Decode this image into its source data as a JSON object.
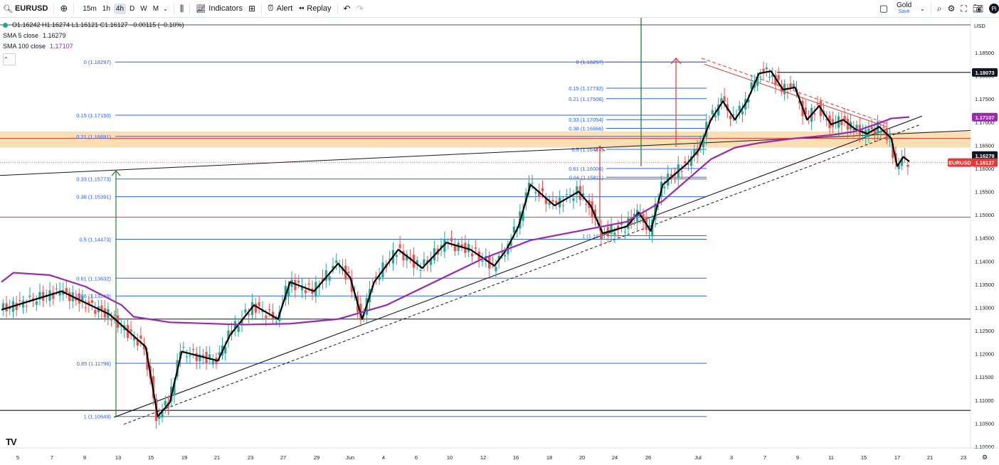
{
  "toolbar": {
    "symbol": "EURUSD",
    "add_symbol_icon": "plus-circle-icon",
    "timeframes": [
      "15m",
      "1h",
      "4h",
      "D",
      "W",
      "M"
    ],
    "active_timeframe": "4h",
    "indicators_label": "Indicators",
    "alert_label": "Alert",
    "replay_label": "Replay",
    "layout_name": "Gold",
    "save_label": "Save",
    "avatar_initial": "Pi"
  },
  "legend": {
    "ohlc": "O1.16242 H1.16274 L1.16121 C1.16127 −0.00115 (−0.10%)",
    "sma5_label": "SMA 5 close",
    "sma5_value": "1.16279",
    "sma100_label": "SMA 100 close",
    "sma100_value": "1.17107"
  },
  "colors": {
    "up": "#26a69a",
    "down": "#ef5350",
    "sma5": "#000000",
    "sma100": "#9c27b0",
    "fib": "#2962ff",
    "zone": "#f9d9a6",
    "red_line": "#e53935",
    "green_line": "#2e7d32"
  },
  "chart_data": {
    "type": "candlestick",
    "symbol": "EURUSD",
    "timeframe": "4h",
    "currency": "USD",
    "ylim": [
      1.095,
      1.189
    ],
    "y_ticks": [
      1.185,
      1.18,
      1.175,
      1.17,
      1.165,
      1.16,
      1.155,
      1.15,
      1.145,
      1.14,
      1.135,
      1.13,
      1.125,
      1.12,
      1.115,
      1.11,
      1.105,
      1.1
    ],
    "x_ticks": [
      "5",
      "7",
      "9",
      "13",
      "15",
      "19",
      "21",
      "23",
      "27",
      "29",
      "Jun",
      "4",
      "6",
      "10",
      "12",
      "16",
      "18",
      "20",
      "24",
      "26",
      "Jul",
      "3",
      "7",
      "9",
      "11",
      "15",
      "17",
      "21",
      "23"
    ],
    "close_path": [
      [
        0,
        1.1295
      ],
      [
        5,
        1.1335
      ],
      [
        9,
        1.1285
      ],
      [
        12,
        1.1215
      ],
      [
        13,
        1.1065
      ],
      [
        14,
        1.1095
      ],
      [
        15,
        1.1205
      ],
      [
        18,
        1.1185
      ],
      [
        19,
        1.124
      ],
      [
        21,
        1.1305
      ],
      [
        23,
        1.1275
      ],
      [
        24,
        1.1355
      ],
      [
        26,
        1.1335
      ],
      [
        28,
        1.1395
      ],
      [
        29,
        1.1365
      ],
      [
        30,
        1.1275
      ],
      [
        31,
        1.1355
      ],
      [
        33,
        1.1425
      ],
      [
        35,
        1.1385
      ],
      [
        37,
        1.144
      ],
      [
        39,
        1.1425
      ],
      [
        41,
        1.139
      ],
      [
        42,
        1.1425
      ],
      [
        43,
        1.1475
      ],
      [
        44,
        1.1565
      ],
      [
        46,
        1.152
      ],
      [
        48,
        1.155
      ],
      [
        49,
        1.152
      ],
      [
        50,
        1.146
      ],
      [
        52,
        1.1475
      ],
      [
        53,
        1.1505
      ],
      [
        54,
        1.1465
      ],
      [
        55,
        1.1565
      ],
      [
        57,
        1.161
      ],
      [
        58,
        1.164
      ],
      [
        59,
        1.1705
      ],
      [
        60,
        1.1745
      ],
      [
        61,
        1.1705
      ],
      [
        62,
        1.1745
      ],
      [
        63,
        1.1805
      ],
      [
        64,
        1.181
      ],
      [
        65,
        1.177
      ],
      [
        66,
        1.1775
      ],
      [
        67,
        1.1705
      ],
      [
        68,
        1.1735
      ],
      [
        69,
        1.1695
      ],
      [
        70,
        1.1705
      ],
      [
        71,
        1.1685
      ],
      [
        72,
        1.1675
      ],
      [
        73,
        1.169
      ],
      [
        74,
        1.1665
      ],
      [
        74.5,
        1.1605
      ],
      [
        75,
        1.1625
      ],
      [
        75.5,
        1.1615
      ]
    ],
    "ma100_path": [
      [
        0,
        1.1355
      ],
      [
        1,
        1.1375
      ],
      [
        4,
        1.137
      ],
      [
        7,
        1.1345
      ],
      [
        10,
        1.1305
      ],
      [
        11,
        1.128
      ],
      [
        14,
        1.1268
      ],
      [
        20,
        1.1263
      ],
      [
        24,
        1.1265
      ],
      [
        28,
        1.1275
      ],
      [
        32,
        1.1305
      ],
      [
        36,
        1.1355
      ],
      [
        40,
        1.1405
      ],
      [
        44,
        1.1445
      ],
      [
        48,
        1.1465
      ],
      [
        50,
        1.1475
      ],
      [
        52,
        1.1485
      ],
      [
        55,
        1.153
      ],
      [
        57,
        1.1575
      ],
      [
        59,
        1.162
      ],
      [
        61,
        1.1645
      ],
      [
        63,
        1.1655
      ],
      [
        66,
        1.1665
      ],
      [
        69,
        1.1672
      ],
      [
        71,
        1.168
      ],
      [
        73,
        1.1698
      ],
      [
        74,
        1.1708
      ],
      [
        75.5,
        1.1711
      ]
    ],
    "fib_left": {
      "from_x": 10,
      "to_x": 62,
      "levels": [
        {
          "label": "0 (1.18297)",
          "price": 1.18297
        },
        {
          "label": "0.15 (1.17150)",
          "price": 1.1715
        },
        {
          "label": "0.21 (1.16691)",
          "price": 1.16691
        },
        {
          "label": "0.33 (1.15773)",
          "price": 1.15773
        },
        {
          "label": "0.38 (1.15391)",
          "price": 1.15391
        },
        {
          "label": "0.5 (1.14473)",
          "price": 1.14473
        },
        {
          "label": "0.61 (1.13632)",
          "price": 1.13632
        },
        {
          "label": "0.66 (1.13249)",
          "price": 1.13249
        },
        {
          "label": "0.85 (1.11796)",
          "price": 1.11796
        },
        {
          "label": "1 (1.10649)",
          "price": 1.10649
        }
      ]
    },
    "fib_right": {
      "from_x": 53,
      "to_x": 62,
      "levels": [
        {
          "label": "0 (1.18297)",
          "price": 1.18297
        },
        {
          "label": "0.15 (1.17732)",
          "price": 1.17732
        },
        {
          "label": "0.21 (1.17506)",
          "price": 1.17506
        },
        {
          "label": "0.33 (1.17054)",
          "price": 1.17054
        },
        {
          "label": "0.38 (1.16866)",
          "price": 1.16866
        },
        {
          "label": "0.5 (1.16414)",
          "price": 1.16414
        },
        {
          "label": "0.61 (1.16000)",
          "price": 1.16
        },
        {
          "label": "0.66 (1.15811)",
          "price": 1.15811
        },
        {
          "label": "1 (1.14?)",
          "price": 1.1455
        }
      ]
    },
    "zone": {
      "from_price": 1.1645,
      "to_price": 1.168
    },
    "horizontal_lines": [
      {
        "price": 1.18073,
        "color": "black",
        "from_x": 63
      },
      {
        "price": 1.1495,
        "color": "red"
      },
      {
        "price": 1.1275,
        "color": "black"
      },
      {
        "price": 1.1078,
        "color": "black"
      },
      {
        "price": 1.1665,
        "color": "red"
      }
    ],
    "price_labels": [
      {
        "text": "1.18073",
        "price": 1.18073,
        "style": "black"
      },
      {
        "text": "1.17107",
        "price": 1.17107,
        "style": "purple"
      },
      {
        "text": "1.16279",
        "price": 1.16279,
        "style": "black"
      },
      {
        "text": "1.16127",
        "price": 1.16127,
        "style": "red"
      }
    ],
    "eurusd_tag": "EURUSD",
    "currency_label": "USD"
  }
}
